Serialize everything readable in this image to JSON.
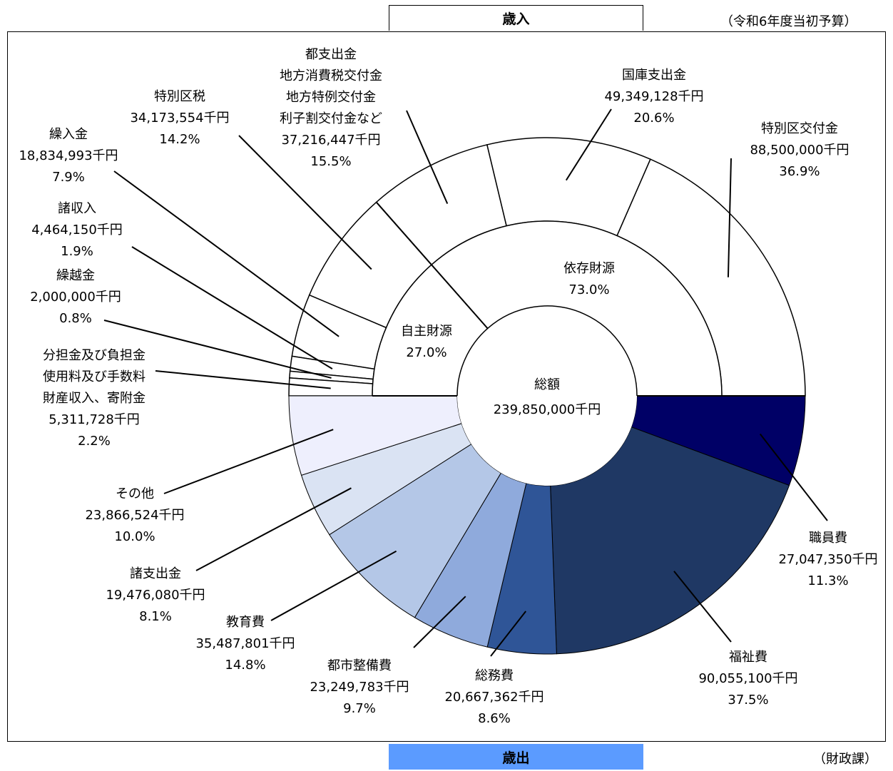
{
  "revenue_title": "歳入",
  "expenditure_title": "歳出",
  "budget_note": "（令和6年度当初予算）",
  "department_note": "（財政課）",
  "center": {
    "label": "総額",
    "total": "239,850,000千円"
  },
  "chart_data": [
    {
      "type": "pie",
      "title": "歳入",
      "total": 239850000,
      "unit": "千円",
      "inner_ring": [
        {
          "name": "自主財源",
          "percent_label": "27.0%",
          "percent": 27.0
        },
        {
          "name": "依存財源",
          "percent_label": "73.0%",
          "percent": 73.0
        }
      ],
      "slices": [
        {
          "lines": [
            "特別区交付金"
          ],
          "value": 88500000,
          "value_label": "88,500,000千円",
          "percent": 36.9,
          "percent_label": "36.9%"
        },
        {
          "lines": [
            "国庫支出金"
          ],
          "value": 49349128,
          "value_label": "49,349,128千円",
          "percent": 20.6,
          "percent_label": "20.6%"
        },
        {
          "lines": [
            "都支出金",
            "地方消費税交付金",
            "地方特例交付金",
            "利子割交付金など"
          ],
          "value": 37216447,
          "value_label": "37,216,447千円",
          "percent": 15.5,
          "percent_label": "15.5%"
        },
        {
          "lines": [
            "特別区税"
          ],
          "value": 34173554,
          "value_label": "34,173,554千円",
          "percent": 14.2,
          "percent_label": "14.2%"
        },
        {
          "lines": [
            "繰入金"
          ],
          "value": 18834993,
          "value_label": "18,834,993千円",
          "percent": 7.9,
          "percent_label": "7.9%"
        },
        {
          "lines": [
            "諸収入"
          ],
          "value": 4464150,
          "value_label": "4,464,150千円",
          "percent": 1.9,
          "percent_label": "1.9%"
        },
        {
          "lines": [
            "繰越金"
          ],
          "value": 2000000,
          "value_label": "2,000,000千円",
          "percent": 0.8,
          "percent_label": "0.8%"
        },
        {
          "lines": [
            "分担金及び負担金",
            "使用料及び手数料",
            "財産収入、寄附金"
          ],
          "value": 5311728,
          "value_label": "5,311,728千円",
          "percent": 2.2,
          "percent_label": "2.2%"
        }
      ]
    },
    {
      "type": "pie",
      "title": "歳出",
      "total": 239850000,
      "unit": "千円",
      "slices": [
        {
          "lines": [
            "職員費"
          ],
          "value": 27047350,
          "value_label": "27,047,350千円",
          "percent": 11.3,
          "percent_label": "11.3%",
          "color": "#000066"
        },
        {
          "lines": [
            "福祉費"
          ],
          "value": 90055100,
          "value_label": "90,055,100千円",
          "percent": 37.5,
          "percent_label": "37.5%",
          "color": "#1f3864"
        },
        {
          "lines": [
            "総務費"
          ],
          "value": 20667362,
          "value_label": "20,667,362千円",
          "percent": 8.6,
          "percent_label": "8.6%",
          "color": "#2f5597"
        },
        {
          "lines": [
            "都市整備費"
          ],
          "value": 23249783,
          "value_label": "23,249,783千円",
          "percent": 9.7,
          "percent_label": "9.7%",
          "color": "#8faadc"
        },
        {
          "lines": [
            "教育費"
          ],
          "value": 35487801,
          "value_label": "35,487,801千円",
          "percent": 14.8,
          "percent_label": "14.8%",
          "color": "#b4c7e7"
        },
        {
          "lines": [
            "諸支出金"
          ],
          "value": 19476080,
          "value_label": "19,476,080千円",
          "percent": 8.1,
          "percent_label": "8.1%",
          "color": "#dae3f3"
        },
        {
          "lines": [
            "その他"
          ],
          "value": 23866524,
          "value_label": "23,866,524千円",
          "percent": 10.0,
          "percent_label": "10.0%",
          "color": "#eeeffd"
        }
      ]
    }
  ]
}
